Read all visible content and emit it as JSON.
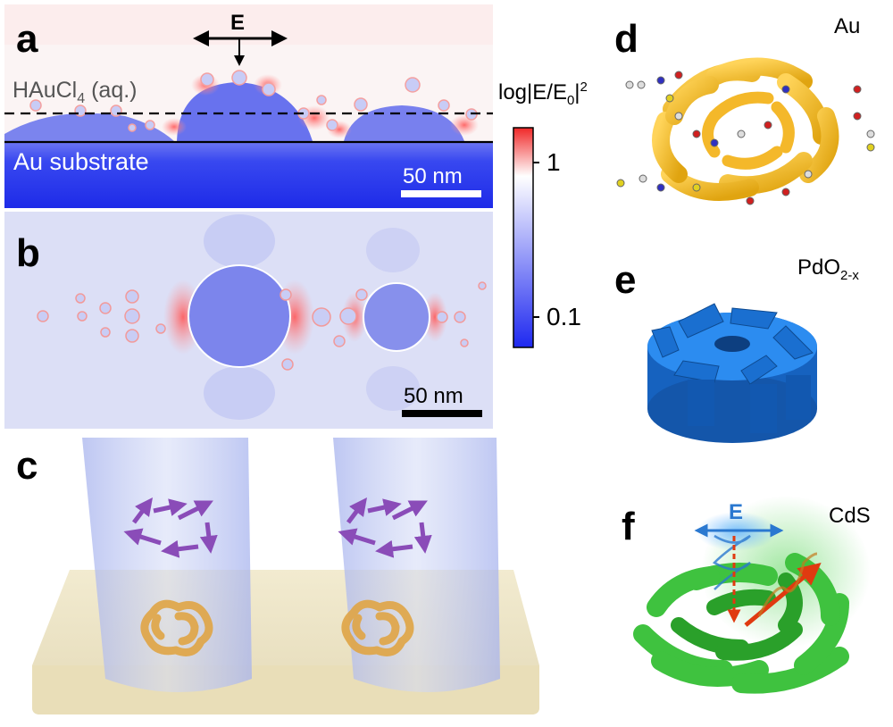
{
  "panels": {
    "a": {
      "letter": "a",
      "field_label": "E",
      "solution_label_prefix": "HAuCl",
      "solution_label_sub": "4",
      "solution_label_suffix": " (aq.)",
      "substrate_label": "Au substrate",
      "scale_bar": "50 nm"
    },
    "b": {
      "letter": "b",
      "scale_bar": "50 nm"
    },
    "c": {
      "letter": "c"
    },
    "d": {
      "letter": "d",
      "material": "Au"
    },
    "e": {
      "letter": "e",
      "material_main": "PdO",
      "material_sub": "2-x"
    },
    "f": {
      "letter": "f",
      "material": "CdS",
      "field_label": "E"
    }
  },
  "colorbar": {
    "title_main": "log|E/E",
    "title_sub": "0",
    "title_tail": "|",
    "title_sup": "2",
    "tick_high": "1",
    "tick_low": "0.1",
    "colors": {
      "high": "#f02828",
      "mid": "#ffffff",
      "low": "#1e28f0"
    }
  }
}
